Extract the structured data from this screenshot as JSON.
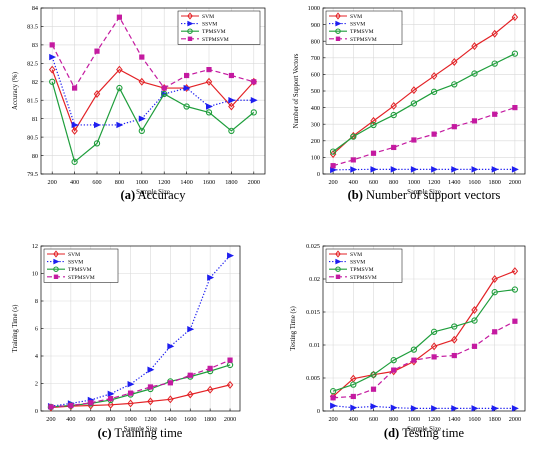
{
  "chart_data": [
    {
      "type": "line",
      "caption_letter": "(a)",
      "caption_text": "Accuracy",
      "xlabel": "Sample Size",
      "ylabel": "Accuracy (%)",
      "x": [
        200,
        400,
        600,
        800,
        1000,
        1200,
        1400,
        1600,
        1800,
        2000
      ],
      "xticks": [
        "200",
        "400",
        "600",
        "800",
        "1000",
        "1200",
        "1400",
        "1600",
        "1800",
        "2000"
      ],
      "ylim": [
        79.5,
        84
      ],
      "yticks": [
        "79.5",
        "80",
        "80.5",
        "81",
        "81.5",
        "82",
        "82.5",
        "83",
        "83.5",
        "84"
      ],
      "grid": true,
      "legend": "top-right",
      "series": [
        {
          "name": "SVM",
          "color": "#e32226",
          "dash": "solid",
          "marker": "diamond",
          "values": [
            82.33,
            80.67,
            81.67,
            82.33,
            82.0,
            81.83,
            81.83,
            82.0,
            81.33,
            82.0
          ]
        },
        {
          "name": "SSVM",
          "color": "#1f1ff0",
          "dash": "dotted",
          "marker": "triangle",
          "values": [
            82.67,
            80.83,
            80.83,
            80.83,
            81.0,
            81.67,
            81.83,
            81.33,
            81.5,
            81.5
          ]
        },
        {
          "name": "TPMSVM",
          "color": "#1f9e3c",
          "dash": "solid",
          "marker": "circle",
          "values": [
            82.0,
            79.83,
            80.33,
            81.83,
            80.67,
            81.67,
            81.33,
            81.17,
            80.67,
            81.17
          ]
        },
        {
          "name": "STPMSVM",
          "color": "#c41aa0",
          "dash": "dashed",
          "marker": "square",
          "values": [
            83.0,
            81.83,
            82.83,
            83.75,
            82.67,
            81.83,
            82.17,
            82.33,
            82.17,
            82.0
          ]
        }
      ]
    },
    {
      "type": "line",
      "caption_letter": "(b)",
      "caption_text": "Number of support vectors",
      "xlabel": "Sample Size",
      "ylabel": "Number of Support Vectors",
      "x": [
        200,
        400,
        600,
        800,
        1000,
        1200,
        1400,
        1600,
        1800,
        2000
      ],
      "xticks": [
        "200",
        "400",
        "600",
        "800",
        "1000",
        "1200",
        "1400",
        "1600",
        "1800",
        "2000"
      ],
      "ylim": [
        0,
        1000
      ],
      "yticks": [
        "0",
        "100",
        "200",
        "300",
        "400",
        "500",
        "600",
        "700",
        "800",
        "900",
        "1000"
      ],
      "grid": true,
      "legend": "top-left",
      "series": [
        {
          "name": "SVM",
          "color": "#e32226",
          "dash": "solid",
          "marker": "diamond",
          "values": [
            120,
            230,
            320,
            410,
            505,
            590,
            675,
            770,
            845,
            945
          ]
        },
        {
          "name": "SSVM",
          "color": "#1f1ff0",
          "dash": "dotted",
          "marker": "triangle",
          "values": [
            25,
            27,
            28,
            28,
            28,
            28,
            28,
            28,
            28,
            28
          ]
        },
        {
          "name": "TPMSVM",
          "color": "#1f9e3c",
          "dash": "solid",
          "marker": "circle",
          "values": [
            135,
            225,
            295,
            355,
            425,
            495,
            540,
            605,
            665,
            725
          ]
        },
        {
          "name": "STPMSVM",
          "color": "#c41aa0",
          "dash": "dashed",
          "marker": "square",
          "values": [
            50,
            85,
            125,
            160,
            205,
            240,
            285,
            320,
            360,
            400
          ]
        }
      ]
    },
    {
      "type": "line",
      "caption_letter": "(c)",
      "caption_text": "Training time",
      "xlabel": "Sample Size",
      "ylabel": "Training Time (s)",
      "x": [
        200,
        400,
        600,
        800,
        1000,
        1200,
        1400,
        1600,
        1800,
        2000
      ],
      "xticks": [
        "200",
        "400",
        "600",
        "800",
        "1000",
        "1200",
        "1400",
        "1600",
        "1800",
        "2000"
      ],
      "ylim": [
        0,
        12
      ],
      "yticks": [
        "0",
        "2",
        "4",
        "6",
        "8",
        "10",
        "12"
      ],
      "grid": true,
      "legend": "top-left",
      "series": [
        {
          "name": "SVM",
          "color": "#e32226",
          "dash": "solid",
          "marker": "diamond",
          "values": [
            0.25,
            0.35,
            0.4,
            0.45,
            0.55,
            0.7,
            0.85,
            1.2,
            1.55,
            1.9
          ]
        },
        {
          "name": "SSVM",
          "color": "#1f1ff0",
          "dash": "dotted",
          "marker": "triangle",
          "values": [
            0.35,
            0.55,
            0.8,
            1.25,
            1.95,
            3.0,
            4.7,
            5.95,
            9.7,
            11.3
          ]
        },
        {
          "name": "TPMSVM",
          "color": "#1f9e3c",
          "dash": "solid",
          "marker": "circle",
          "values": [
            0.3,
            0.4,
            0.55,
            0.8,
            1.2,
            1.6,
            2.15,
            2.5,
            2.9,
            3.35
          ]
        },
        {
          "name": "STPMSVM",
          "color": "#c41aa0",
          "dash": "dashed",
          "marker": "square",
          "values": [
            0.3,
            0.4,
            0.6,
            0.9,
            1.3,
            1.75,
            2.05,
            2.6,
            3.1,
            3.7
          ]
        }
      ]
    },
    {
      "type": "line",
      "caption_letter": "(d)",
      "caption_text": "Testing time",
      "xlabel": "Sample Size",
      "ylabel": "Testing Time (s)",
      "x": [
        200,
        400,
        600,
        800,
        1000,
        1200,
        1400,
        1600,
        1800,
        2000
      ],
      "xticks": [
        "200",
        "400",
        "600",
        "800",
        "1000",
        "1200",
        "1400",
        "1600",
        "1800",
        "2000"
      ],
      "ylim": [
        0,
        0.025
      ],
      "yticks": [
        "0",
        "0.005",
        "0.01",
        "0.015",
        "0.02",
        "0.025"
      ],
      "grid": true,
      "legend": "top-left",
      "series": [
        {
          "name": "SVM",
          "color": "#e32226",
          "dash": "solid",
          "marker": "diamond",
          "values": [
            0.0022,
            0.0049,
            0.0055,
            0.006,
            0.0075,
            0.0098,
            0.0108,
            0.0153,
            0.02,
            0.0212
          ]
        },
        {
          "name": "SSVM",
          "color": "#1f1ff0",
          "dash": "dotted",
          "marker": "triangle",
          "values": [
            0.0008,
            0.0005,
            0.0007,
            0.0005,
            0.0004,
            0.0004,
            0.0004,
            0.0004,
            0.0004,
            0.0004
          ]
        },
        {
          "name": "TPMSVM",
          "color": "#1f9e3c",
          "dash": "solid",
          "marker": "circle",
          "values": [
            0.003,
            0.004,
            0.0055,
            0.0077,
            0.0093,
            0.012,
            0.0128,
            0.0137,
            0.018,
            0.0184
          ]
        },
        {
          "name": "STPMSVM",
          "color": "#c41aa0",
          "dash": "dashed",
          "marker": "square",
          "values": [
            0.002,
            0.0022,
            0.0033,
            0.0062,
            0.0077,
            0.0082,
            0.0084,
            0.0098,
            0.012,
            0.0136
          ]
        }
      ]
    }
  ]
}
